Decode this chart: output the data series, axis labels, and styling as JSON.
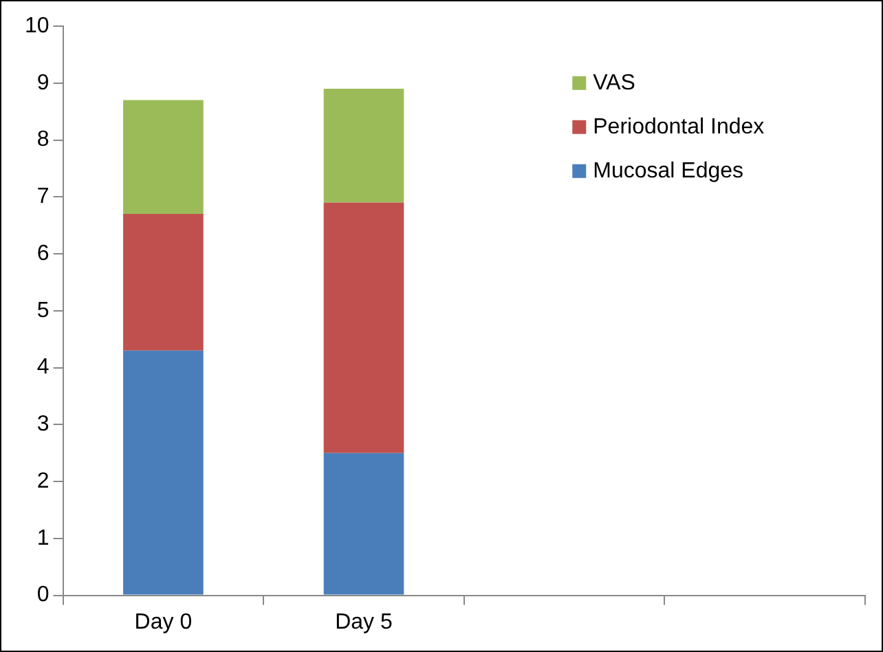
{
  "chart_data": {
    "type": "bar",
    "stacked": true,
    "categories": [
      "Day 0",
      "Day 5",
      null,
      null
    ],
    "series": [
      {
        "name": "Mucosal Edges",
        "color": "#4a7ebb",
        "values": [
          4.3,
          2.5,
          null,
          null
        ]
      },
      {
        "name": "Periodontal Index",
        "color": "#c0504d",
        "values": [
          2.4,
          4.4,
          null,
          null
        ]
      },
      {
        "name": "VAS",
        "color": "#9bbb59",
        "values": [
          2.0,
          2.0,
          null,
          null
        ]
      }
    ],
    "ylim": [
      0,
      10
    ],
    "yticks": [
      0,
      1,
      2,
      3,
      4,
      5,
      6,
      7,
      8,
      9,
      10
    ],
    "grid": false,
    "legend": "top right"
  }
}
